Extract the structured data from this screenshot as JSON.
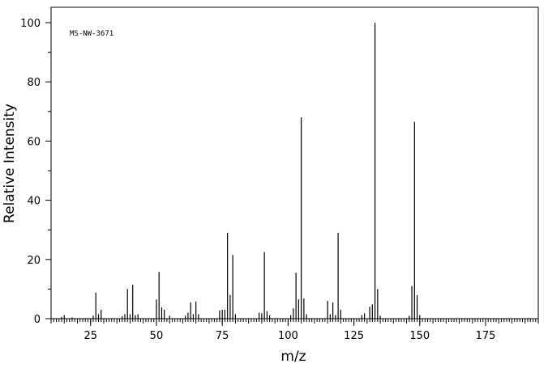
{
  "chart_data": {
    "type": "bar",
    "title": "",
    "annotation": "MS-NW-3671",
    "xlabel": "m/z",
    "ylabel": "Relative Intensity",
    "xlim": [
      10,
      195
    ],
    "ylim": [
      0,
      100
    ],
    "xticks": [
      25,
      50,
      75,
      100,
      125,
      150,
      175
    ],
    "yticks": [
      0,
      20,
      40,
      60,
      80,
      100
    ],
    "grid": false,
    "peaks": [
      {
        "mz": 14,
        "intensity": 0.6
      },
      {
        "mz": 15,
        "intensity": 1.2
      },
      {
        "mz": 18,
        "intensity": 0.4
      },
      {
        "mz": 26,
        "intensity": 1.0
      },
      {
        "mz": 27,
        "intensity": 8.8
      },
      {
        "mz": 28,
        "intensity": 1.5
      },
      {
        "mz": 29,
        "intensity": 3.0
      },
      {
        "mz": 37,
        "intensity": 0.8
      },
      {
        "mz": 38,
        "intensity": 1.5
      },
      {
        "mz": 39,
        "intensity": 10.0
      },
      {
        "mz": 40,
        "intensity": 1.5
      },
      {
        "mz": 41,
        "intensity": 11.5
      },
      {
        "mz": 42,
        "intensity": 1.2
      },
      {
        "mz": 43,
        "intensity": 1.5
      },
      {
        "mz": 50,
        "intensity": 6.5
      },
      {
        "mz": 51,
        "intensity": 15.8
      },
      {
        "mz": 52,
        "intensity": 3.8
      },
      {
        "mz": 53,
        "intensity": 3.0
      },
      {
        "mz": 55,
        "intensity": 1.0
      },
      {
        "mz": 61,
        "intensity": 1.0
      },
      {
        "mz": 62,
        "intensity": 2.0
      },
      {
        "mz": 63,
        "intensity": 5.5
      },
      {
        "mz": 64,
        "intensity": 1.5
      },
      {
        "mz": 65,
        "intensity": 5.8
      },
      {
        "mz": 66,
        "intensity": 1.5
      },
      {
        "mz": 74,
        "intensity": 2.8
      },
      {
        "mz": 75,
        "intensity": 3.0
      },
      {
        "mz": 76,
        "intensity": 3.0
      },
      {
        "mz": 77,
        "intensity": 29.0
      },
      {
        "mz": 78,
        "intensity": 8.0
      },
      {
        "mz": 79,
        "intensity": 21.5
      },
      {
        "mz": 80,
        "intensity": 1.5
      },
      {
        "mz": 89,
        "intensity": 2.0
      },
      {
        "mz": 90,
        "intensity": 1.8
      },
      {
        "mz": 91,
        "intensity": 22.5
      },
      {
        "mz": 92,
        "intensity": 2.5
      },
      {
        "mz": 93,
        "intensity": 1.2
      },
      {
        "mz": 101,
        "intensity": 1.2
      },
      {
        "mz": 102,
        "intensity": 3.5
      },
      {
        "mz": 103,
        "intensity": 15.5
      },
      {
        "mz": 104,
        "intensity": 6.5
      },
      {
        "mz": 105,
        "intensity": 68.0
      },
      {
        "mz": 106,
        "intensity": 6.8
      },
      {
        "mz": 107,
        "intensity": 1.5
      },
      {
        "mz": 115,
        "intensity": 6.0
      },
      {
        "mz": 116,
        "intensity": 1.5
      },
      {
        "mz": 117,
        "intensity": 5.5
      },
      {
        "mz": 118,
        "intensity": 1.2
      },
      {
        "mz": 119,
        "intensity": 29.0
      },
      {
        "mz": 120,
        "intensity": 3.0
      },
      {
        "mz": 128,
        "intensity": 1.2
      },
      {
        "mz": 129,
        "intensity": 1.8
      },
      {
        "mz": 131,
        "intensity": 4.0
      },
      {
        "mz": 132,
        "intensity": 4.8
      },
      {
        "mz": 133,
        "intensity": 100.0
      },
      {
        "mz": 134,
        "intensity": 10.0
      },
      {
        "mz": 135,
        "intensity": 1.0
      },
      {
        "mz": 146,
        "intensity": 1.0
      },
      {
        "mz": 147,
        "intensity": 11.0
      },
      {
        "mz": 148,
        "intensity": 66.5
      },
      {
        "mz": 149,
        "intensity": 8.0
      },
      {
        "mz": 150,
        "intensity": 1.2
      }
    ]
  }
}
